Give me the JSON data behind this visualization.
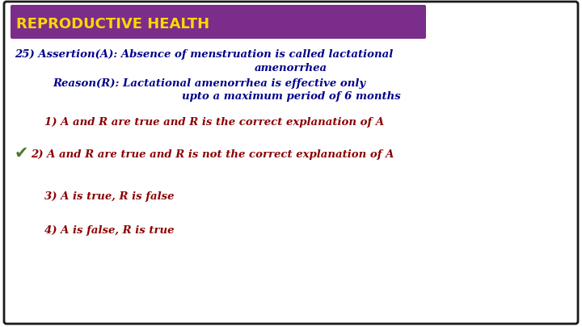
{
  "title": "REPRODUCTIVE HEALTH",
  "title_bg": "#7B2D8B",
  "title_color": "#FFD700",
  "bg_color": "#FFFFFF",
  "border_color": "#1a1a1a",
  "line1": "25) Assertion(A): Absence of menstruation is called lactational",
  "line2": "amenorrhea",
  "line3": "Reason(R): Lactational amenorrhea is effective only",
  "line4": "upto a maximum period of 6 months",
  "opt1": "1) A and R are true and R is the correct explanation of A",
  "opt2": "2) A and R are true and R is not the correct explanation of A",
  "opt3": "3) A is true, R is false",
  "opt4": "4) A is false, R is true",
  "question_color": "#00008B",
  "option_color": "#8B0000",
  "checkmark_color": "#4A7C2F",
  "figsize": [
    7.2,
    4.05
  ],
  "dpi": 100
}
